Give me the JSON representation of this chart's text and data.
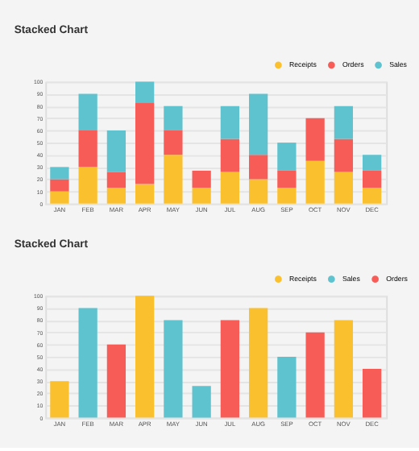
{
  "chart_data": [
    {
      "type": "bar",
      "title": "Stacked Chart",
      "stacked": true,
      "categories": [
        "JAN",
        "FEB",
        "MAR",
        "APR",
        "MAY",
        "JUN",
        "JUL",
        "AUG",
        "SEP",
        "OCT",
        "NOV",
        "DEC"
      ],
      "series": [
        {
          "name": "Receipts",
          "color": "#fbc02d",
          "values": [
            10,
            30,
            13,
            16,
            40,
            13,
            26,
            20,
            13,
            35,
            26,
            13
          ]
        },
        {
          "name": "Orders",
          "color": "#f75c57",
          "values": [
            10,
            30,
            13,
            67,
            20,
            14,
            27,
            20,
            14,
            35,
            27,
            14
          ]
        },
        {
          "name": "Sales",
          "color": "#5fc3cf",
          "values": [
            10,
            30,
            34,
            17,
            20,
            null,
            27,
            50,
            23,
            null,
            27,
            13
          ]
        }
      ],
      "ylim": [
        0,
        100
      ],
      "yticks": [
        0,
        10,
        20,
        30,
        40,
        50,
        60,
        70,
        80,
        90,
        100
      ],
      "grid": "y",
      "legend": "top right"
    },
    {
      "type": "bar",
      "title": "Stacked Chart",
      "categories": [
        "JAN",
        "FEB",
        "MAR",
        "APR",
        "MAY",
        "JUN",
        "JUL",
        "AUG",
        "SEP",
        "OCT",
        "NOV",
        "DEC"
      ],
      "series": [
        {
          "name": "Receipts",
          "color": "#fbc02d",
          "values": [
            30,
            null,
            null,
            100,
            null,
            null,
            null,
            90,
            null,
            null,
            80,
            null
          ]
        },
        {
          "name": "Sales",
          "color": "#5fc3cf",
          "values": [
            null,
            90,
            null,
            null,
            80,
            26,
            null,
            null,
            50,
            null,
            null,
            null
          ]
        },
        {
          "name": "Orders",
          "color": "#f75c57",
          "values": [
            null,
            null,
            60,
            null,
            null,
            null,
            80,
            null,
            null,
            70,
            null,
            40
          ]
        }
      ],
      "ylim": [
        0,
        100
      ],
      "yticks": [
        0,
        10,
        20,
        30,
        40,
        50,
        60,
        70,
        80,
        90,
        100
      ],
      "grid": "y",
      "legend": "top right"
    }
  ]
}
